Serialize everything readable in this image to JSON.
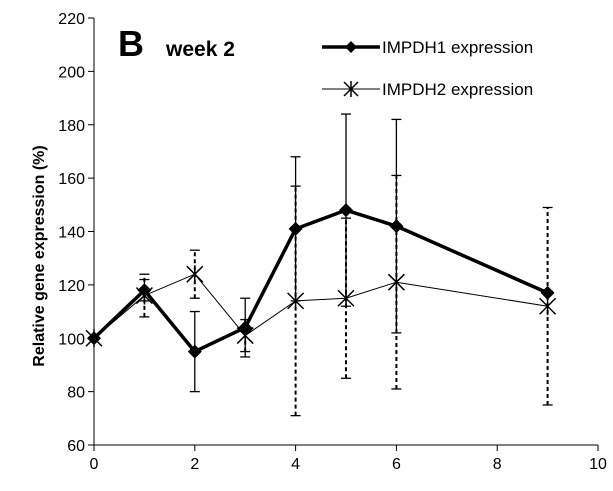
{
  "chart_data": {
    "type": "line",
    "panel_letter": "B",
    "panel_title": "week 2",
    "xlabel": "",
    "ylabel": "Relative gene expression (%)",
    "xlim": [
      0,
      10
    ],
    "ylim": [
      60,
      220
    ],
    "xticks": [
      0,
      2,
      4,
      6,
      8,
      10
    ],
    "yticks": [
      60,
      80,
      100,
      120,
      140,
      160,
      180,
      200,
      220
    ],
    "grid": false,
    "legend_position": "top-right",
    "series": [
      {
        "name": "IMPDH1 expression",
        "marker": "diamond",
        "line": "thick-solid",
        "error_style": "solid",
        "x": [
          0,
          1,
          2,
          3,
          4,
          5,
          6,
          9
        ],
        "y": [
          100,
          118,
          95,
          104,
          141,
          148,
          142,
          117
        ],
        "err": [
          0,
          4,
          15,
          11,
          27,
          36,
          40,
          0
        ]
      },
      {
        "name": "IMPDH2 expression",
        "marker": "asterisk",
        "line": "thin-solid",
        "error_style": "dashed",
        "x": [
          0,
          1,
          2,
          3,
          4,
          5,
          6,
          9
        ],
        "y": [
          100,
          116,
          124,
          101,
          114,
          115,
          121,
          112
        ],
        "err": [
          0,
          8,
          9,
          6,
          43,
          30,
          40,
          37
        ]
      }
    ]
  }
}
